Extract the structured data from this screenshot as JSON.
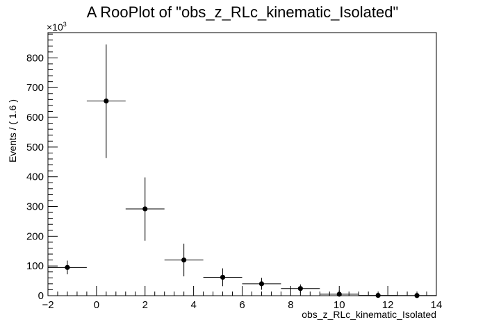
{
  "chart_data": {
    "type": "scatter",
    "title": "A RooPlot of \"obs_z_RLc_kinematic_Isolated\"",
    "xlabel": "obs_z_RLc_kinematic_Isolated",
    "ylabel": "Events / ( 1.6 )",
    "y_multiplier": {
      "base": "×10",
      "exponent": "3"
    },
    "xlim": [
      -2,
      14
    ],
    "ylim": [
      0,
      885
    ],
    "x_ticks": [
      -2,
      0,
      2,
      4,
      6,
      8,
      10,
      12,
      14
    ],
    "x_tick_labels": [
      "−2",
      "0",
      "2",
      "4",
      "6",
      "8",
      "10",
      "12",
      "14"
    ],
    "y_ticks": [
      0,
      100,
      200,
      300,
      400,
      500,
      600,
      700,
      800
    ],
    "y_tick_labels": [
      "0",
      "100",
      "200",
      "300",
      "400",
      "500",
      "600",
      "700",
      "800"
    ],
    "grid": false,
    "legend": "none",
    "bin_half_width": 0.8,
    "points": [
      {
        "x": -1.2,
        "y": 95,
        "ylo": 72,
        "yhi": 118
      },
      {
        "x": 0.4,
        "y": 655,
        "ylo": 463,
        "yhi": 845
      },
      {
        "x": 2.0,
        "y": 292,
        "ylo": 185,
        "yhi": 398
      },
      {
        "x": 3.6,
        "y": 120,
        "ylo": 65,
        "yhi": 175
      },
      {
        "x": 5.2,
        "y": 62,
        "ylo": 32,
        "yhi": 92
      },
      {
        "x": 6.8,
        "y": 40,
        "ylo": 20,
        "yhi": 60
      },
      {
        "x": 8.4,
        "y": 24,
        "ylo": 10,
        "yhi": 38
      },
      {
        "x": 10.0,
        "y": 5,
        "ylo": 0,
        "yhi": 18
      },
      {
        "x": 11.6,
        "y": 1,
        "ylo": 0,
        "yhi": 6
      },
      {
        "x": 13.2,
        "y": 0.5,
        "ylo": 0,
        "yhi": 4
      }
    ],
    "marker_color": "#000000"
  }
}
